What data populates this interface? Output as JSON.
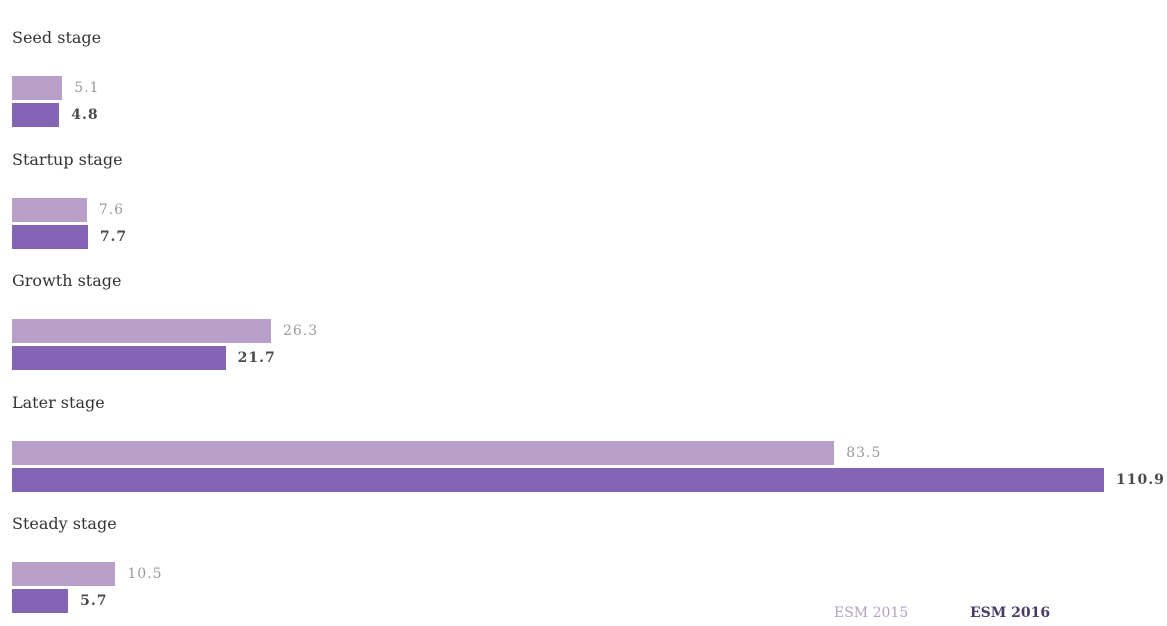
{
  "chart_data": {
    "type": "bar",
    "orientation": "horizontal",
    "categories": [
      "Seed stage",
      "Startup stage",
      "Growth stage",
      "Later stage",
      "Steady stage"
    ],
    "series": [
      {
        "name": "ESM 2015",
        "values": [
          5.1,
          7.6,
          26.3,
          83.5,
          10.5
        ],
        "labels": [
          "5.1",
          "7.6",
          "26.3",
          "83.5",
          "10.5"
        ],
        "color": "#b79fc8"
      },
      {
        "name": "ESM 2016",
        "values": [
          4.8,
          7.7,
          21.7,
          110.9,
          5.7
        ],
        "labels": [
          "4.8",
          "7.7",
          "21.7",
          "110.9",
          "5.7"
        ],
        "color": "#8464b4"
      }
    ],
    "xlim": [
      0,
      110.9
    ],
    "grid": false,
    "legend_position": "bottom-right"
  }
}
